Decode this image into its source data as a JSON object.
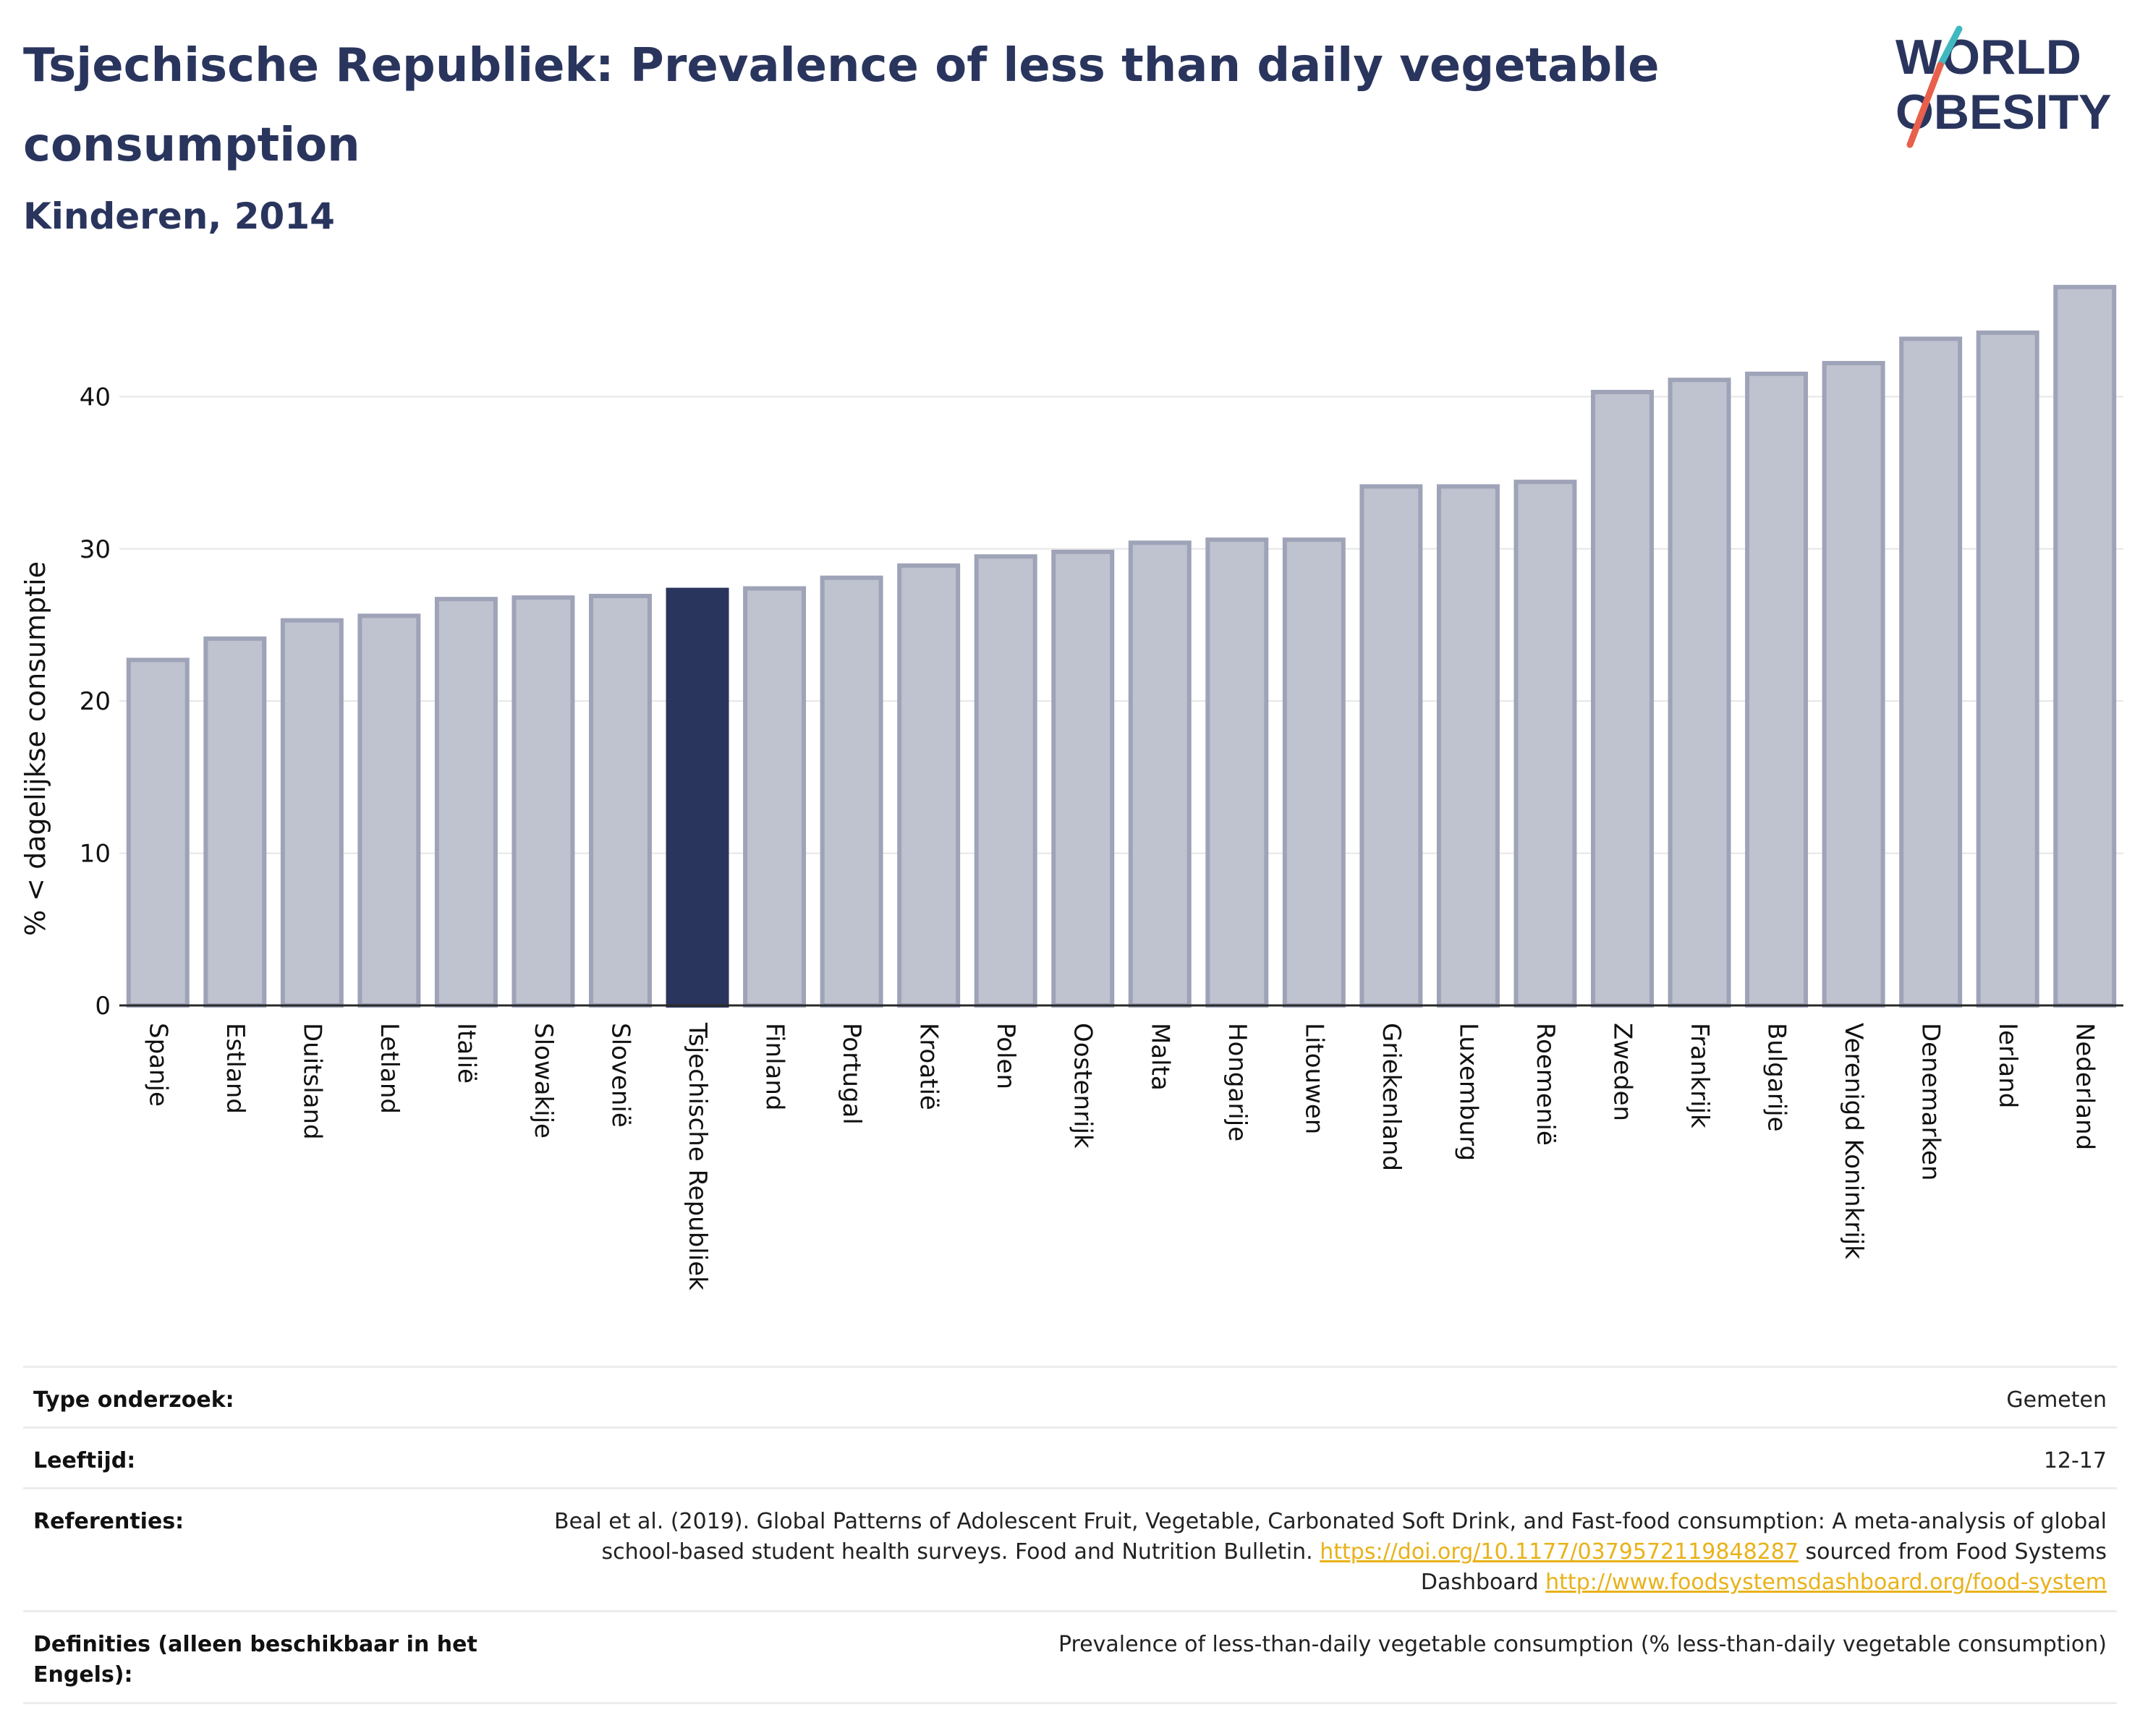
{
  "title": "Tsjechische Republiek: Prevalence of less than daily vegetable consumption",
  "subtitle": "Kinderen, 2014",
  "logo": {
    "line1": "WORLD",
    "line2": "OBESITY",
    "accent_colors": [
      "#e8604c",
      "#3fb8c0"
    ]
  },
  "colors": {
    "highlight": "#2a355e",
    "bar": "#bfc2cf",
    "bar_edge": "#9ea3b8",
    "link": "#e8b219"
  },
  "chart_data": {
    "type": "bar",
    "ylabel": "% < dagelijkse consumptie",
    "xlabel": "",
    "ylim": [
      0,
      48
    ],
    "yticks": [
      0,
      10,
      20,
      30,
      40
    ],
    "grid": true,
    "highlight": "Tsjechische Republiek",
    "categories": [
      "Spanje",
      "Estland",
      "Duitsland",
      "Letland",
      "Italië",
      "Slowakije",
      "Slovenië",
      "Tsjechische Republiek",
      "Finland",
      "Portugal",
      "Kroatië",
      "Polen",
      "Oostenrijk",
      "Malta",
      "Hongarije",
      "Litouwen",
      "Griekenland",
      "Luxemburg",
      "Roemenië",
      "Zweden",
      "Frankrijk",
      "Bulgarije",
      "Verenigd Koninkrijk",
      "Denemarken",
      "Ierland",
      "Nederland"
    ],
    "values": [
      22.7,
      24.1,
      25.3,
      25.6,
      26.7,
      26.8,
      26.9,
      27.3,
      27.4,
      28.1,
      28.9,
      29.5,
      29.8,
      30.4,
      30.6,
      30.6,
      34.1,
      34.1,
      34.4,
      40.3,
      41.1,
      41.5,
      42.2,
      43.8,
      44.2,
      47.2
    ]
  },
  "meta": {
    "type_label": "Type onderzoek:",
    "type_value": "Gemeten",
    "age_label": "Leeftijd:",
    "age_value": "12-17",
    "ref_label": "Referenties:",
    "ref_text1": "Beal et al. (2019). Global Patterns of Adolescent Fruit, Vegetable, Carbonated Soft Drink, and Fast-food consumption: A meta-analysis of global school-based student health surveys. Food and Nutrition Bulletin. ",
    "ref_link1": "https://doi.org/10.1177/0379572119848287",
    "ref_text2": " sourced from Food Systems Dashboard ",
    "ref_link2": "http://www.foodsystemsdashboard.org/food-system",
    "def_label": "Definities (alleen beschikbaar in het Engels):",
    "def_value": "Prevalence of less-than-daily vegetable consumption (% less-than-daily vegetable consumption)"
  }
}
